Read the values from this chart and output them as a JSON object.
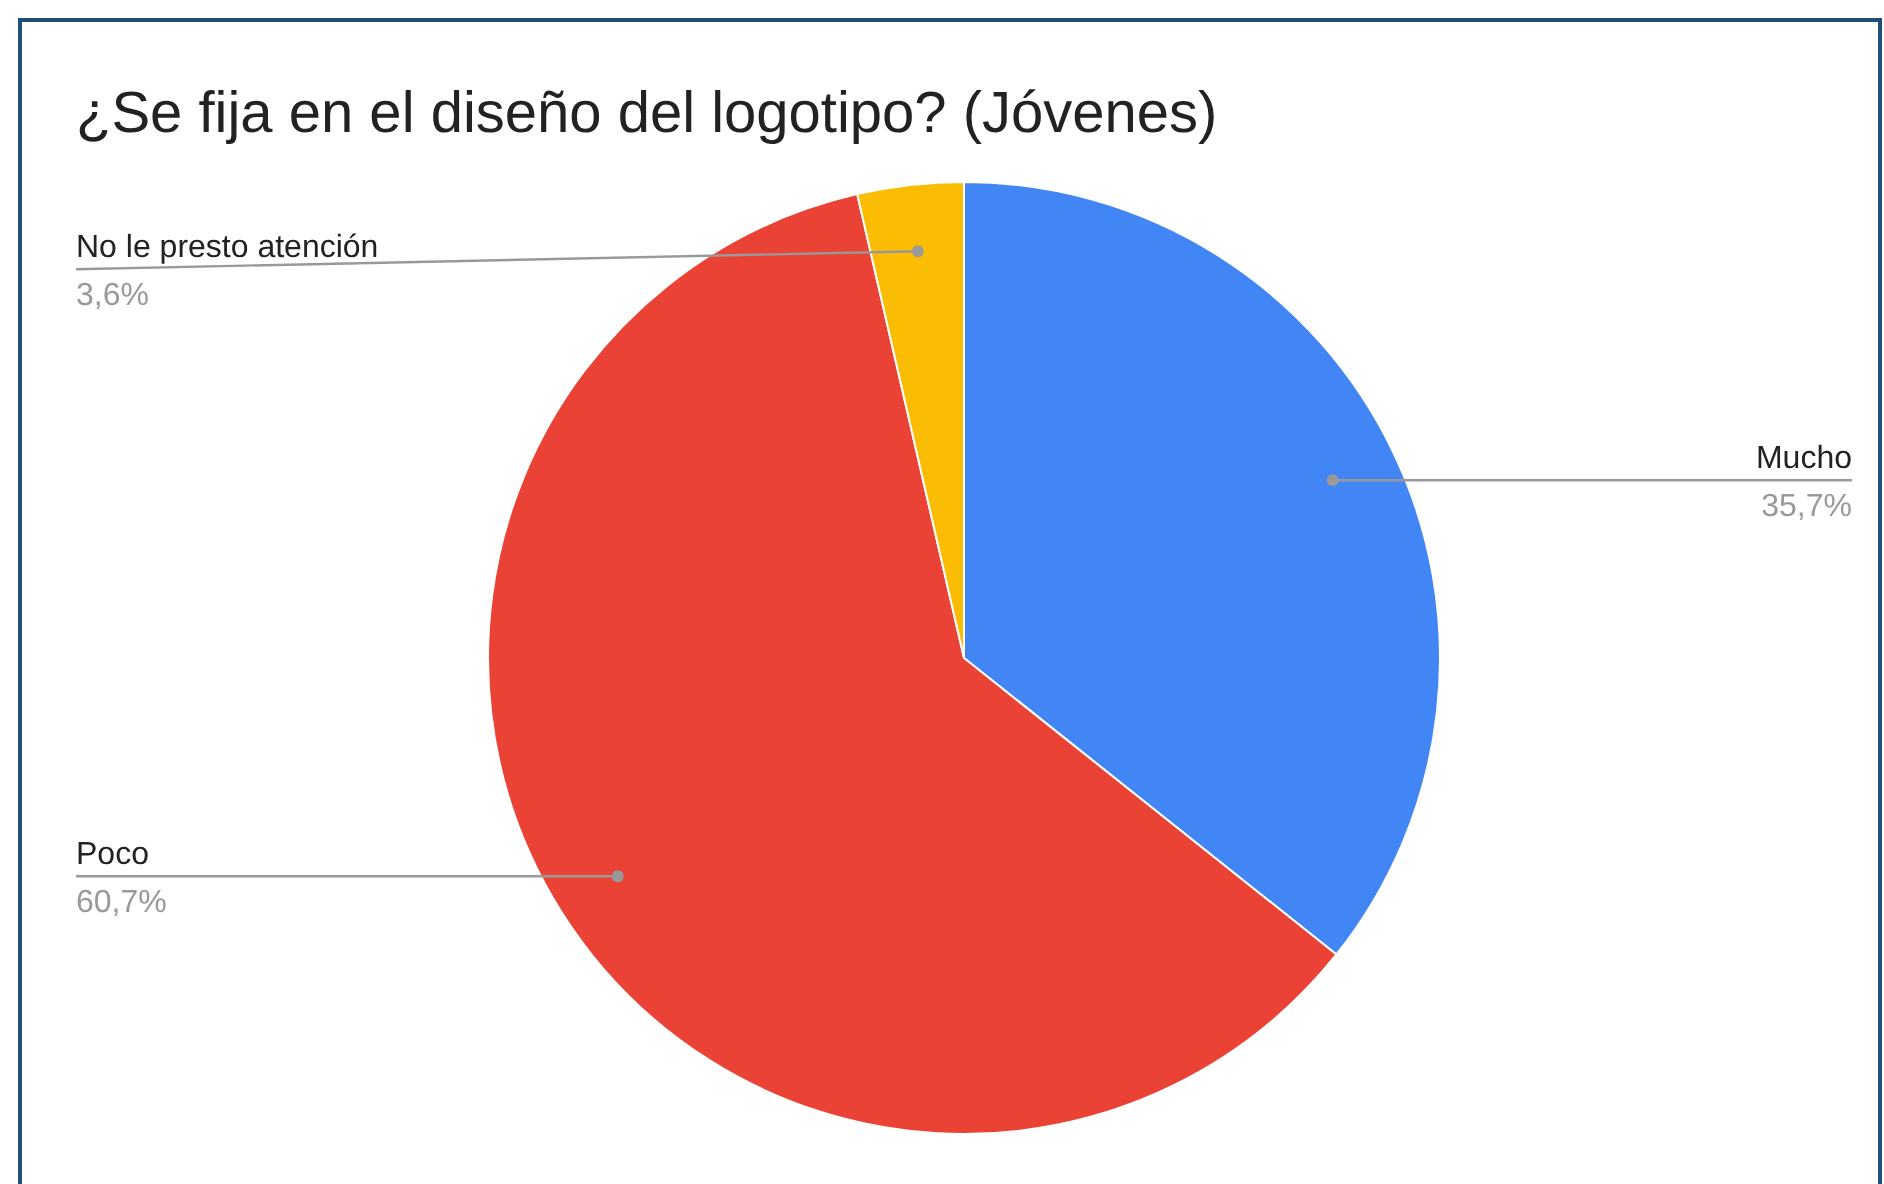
{
  "chart_data": {
    "type": "pie",
    "title": "¿Se fija en el diseño del logotipo? (Jóvenes)",
    "categories": [
      "Mucho",
      "Poco",
      "No le presto atención"
    ],
    "values": [
      35.7,
      60.7,
      3.6
    ],
    "colors": [
      "#4285f4",
      "#ea4335",
      "#fbbc04"
    ],
    "value_labels": [
      "35,7%",
      "60,7%",
      "3,6%"
    ]
  }
}
